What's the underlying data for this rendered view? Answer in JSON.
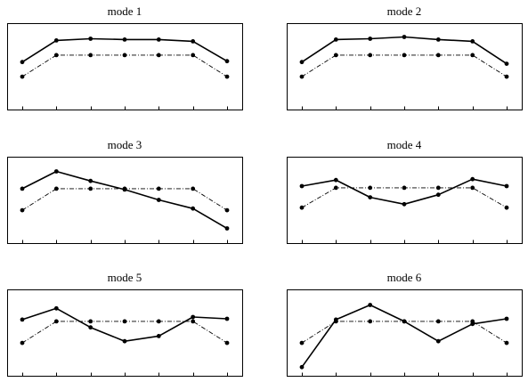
{
  "chart_data": [
    {
      "type": "line",
      "title": "mode 1",
      "x": [
        1,
        2,
        3,
        4,
        5,
        6,
        7
      ],
      "ylim": [
        0,
        1
      ],
      "grid": false,
      "series": [
        {
          "style": "solid",
          "color": "#000000",
          "values": [
            0.55,
            0.8,
            0.82,
            0.81,
            0.81,
            0.79,
            0.56
          ]
        },
        {
          "style": "dashdot",
          "color": "#000000",
          "values": [
            0.38,
            0.63,
            0.63,
            0.63,
            0.63,
            0.63,
            0.38
          ]
        }
      ]
    },
    {
      "type": "line",
      "title": "mode 2",
      "x": [
        1,
        2,
        3,
        4,
        5,
        6,
        7
      ],
      "ylim": [
        0,
        1
      ],
      "grid": false,
      "series": [
        {
          "style": "solid",
          "color": "#000000",
          "values": [
            0.55,
            0.81,
            0.82,
            0.84,
            0.81,
            0.79,
            0.53
          ]
        },
        {
          "style": "dashdot",
          "color": "#000000",
          "values": [
            0.38,
            0.63,
            0.63,
            0.63,
            0.63,
            0.63,
            0.38
          ]
        }
      ]
    },
    {
      "type": "line",
      "title": "mode 3",
      "x": [
        1,
        2,
        3,
        4,
        5,
        6,
        7
      ],
      "ylim": [
        0,
        1
      ],
      "grid": false,
      "series": [
        {
          "style": "solid",
          "color": "#000000",
          "values": [
            0.63,
            0.83,
            0.72,
            0.62,
            0.5,
            0.4,
            0.17
          ]
        },
        {
          "style": "dashdot",
          "color": "#000000",
          "values": [
            0.38,
            0.63,
            0.63,
            0.63,
            0.63,
            0.63,
            0.38
          ]
        }
      ]
    },
    {
      "type": "line",
      "title": "mode 4",
      "x": [
        1,
        2,
        3,
        4,
        5,
        6,
        7
      ],
      "ylim": [
        0,
        1
      ],
      "grid": false,
      "series": [
        {
          "style": "solid",
          "color": "#000000",
          "values": [
            0.66,
            0.73,
            0.53,
            0.45,
            0.56,
            0.74,
            0.66
          ]
        },
        {
          "style": "dashdot",
          "color": "#000000",
          "values": [
            0.41,
            0.64,
            0.64,
            0.64,
            0.64,
            0.64,
            0.41
          ]
        }
      ]
    },
    {
      "type": "line",
      "title": "mode 5",
      "x": [
        1,
        2,
        3,
        4,
        5,
        6,
        7
      ],
      "ylim": [
        0,
        1
      ],
      "grid": false,
      "series": [
        {
          "style": "solid",
          "color": "#000000",
          "values": [
            0.65,
            0.78,
            0.56,
            0.4,
            0.46,
            0.68,
            0.66
          ]
        },
        {
          "style": "dashdot",
          "color": "#000000",
          "values": [
            0.38,
            0.63,
            0.63,
            0.63,
            0.63,
            0.63,
            0.38
          ]
        }
      ]
    },
    {
      "type": "line",
      "title": "mode 6",
      "x": [
        1,
        2,
        3,
        4,
        5,
        6,
        7
      ],
      "ylim": [
        0,
        1
      ],
      "grid": false,
      "series": [
        {
          "style": "solid",
          "color": "#000000",
          "values": [
            0.1,
            0.65,
            0.82,
            0.63,
            0.4,
            0.6,
            0.66
          ]
        },
        {
          "style": "dashdot",
          "color": "#000000",
          "values": [
            0.38,
            0.63,
            0.63,
            0.63,
            0.63,
            0.63,
            0.38
          ]
        }
      ]
    }
  ]
}
